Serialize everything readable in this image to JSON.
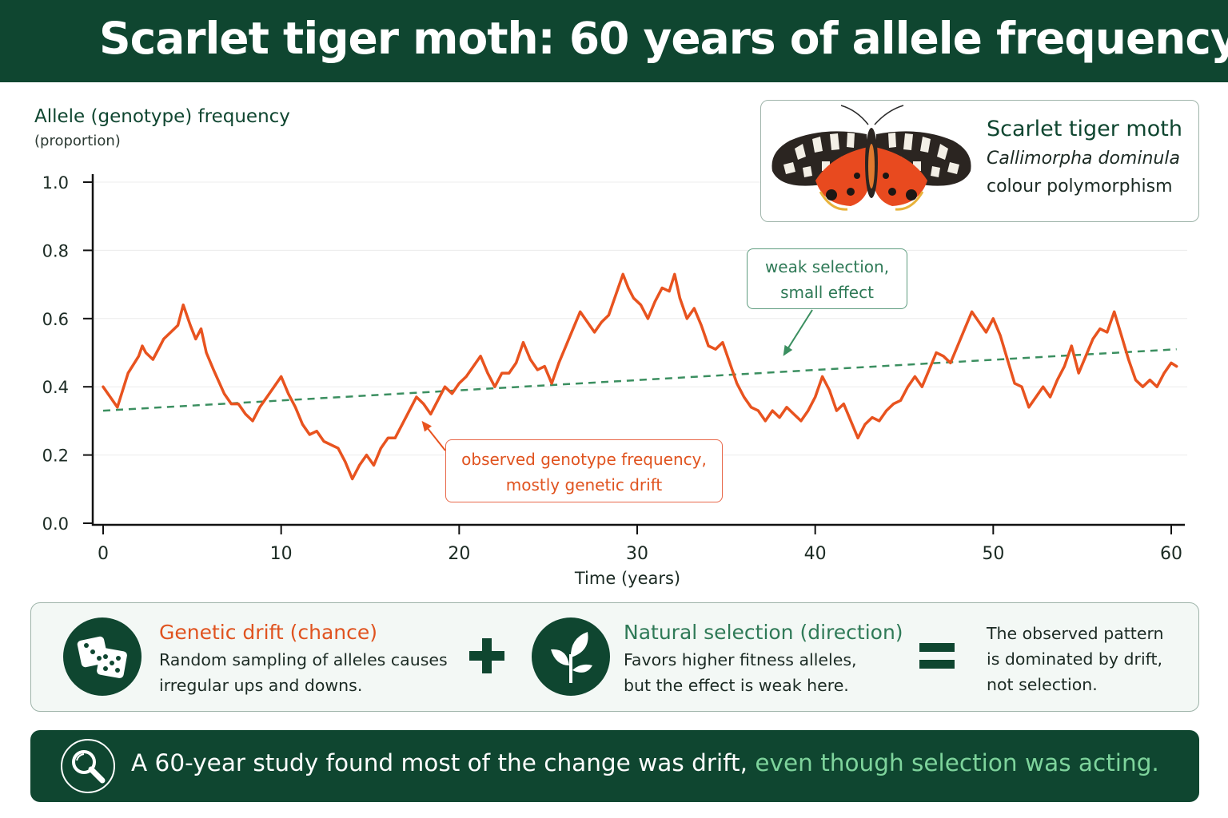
{
  "header": {
    "title": "Scarlet tiger moth: 60 years of allele frequency"
  },
  "chart_data": {
    "type": "line",
    "ylabel": "Allele (genotype) frequency",
    "yunit": "(proportion)",
    "xlabel": "Time (years)",
    "xlim": [
      0,
      60
    ],
    "ylim": [
      0,
      1
    ],
    "xticks": [
      0,
      10,
      20,
      30,
      40,
      50,
      60
    ],
    "yticks": [
      0.0,
      0.2,
      0.4,
      0.6,
      0.8,
      1.0
    ],
    "ytick_labels": [
      "0.0",
      "0.2",
      "0.4",
      "0.6",
      "0.8",
      "1.0"
    ],
    "grid": true,
    "series": [
      {
        "color": "#e8531f",
        "style": "solid",
        "x": [
          0,
          0.4,
          0.8,
          1.4,
          2.0,
          2.2,
          2.4,
          2.8,
          3.2,
          3.4,
          3.8,
          4.2,
          4.5,
          4.9,
          5.2,
          5.5,
          5.8,
          6.2,
          6.8,
          7.2,
          7.6,
          8.0,
          8.4,
          8.8,
          9.2,
          9.6,
          10.0,
          10.4,
          10.8,
          11.2,
          11.6,
          12.0,
          12.4,
          12.8,
          13.2,
          13.6,
          14.0,
          14.4,
          14.8,
          15.2,
          15.6,
          16.0,
          16.4,
          16.8,
          17.2,
          17.6,
          18.0,
          18.4,
          18.8,
          19.2,
          19.6,
          20.0,
          20.4,
          20.8,
          21.2,
          21.6,
          22.0,
          22.4,
          22.8,
          23.2,
          23.6,
          24.0,
          24.4,
          24.8,
          25.2,
          25.6,
          26.0,
          26.4,
          26.8,
          27.2,
          27.6,
          28.0,
          28.4,
          28.8,
          29.2,
          29.5,
          29.8,
          30.2,
          30.6,
          31.0,
          31.4,
          31.8,
          32.1,
          32.4,
          32.8,
          33.2,
          33.6,
          34.0,
          34.4,
          34.8,
          35.2,
          35.6,
          36.0,
          36.4,
          36.8,
          37.2,
          37.6,
          38.0,
          38.4,
          38.8,
          39.2,
          39.6,
          40.0,
          40.4,
          40.8,
          41.2,
          41.6,
          42.0,
          42.4,
          42.8,
          43.2,
          43.6,
          44.0,
          44.4,
          44.8,
          45.2,
          45.6,
          46.0,
          46.4,
          46.8,
          47.2,
          47.6,
          48.0,
          48.4,
          48.8,
          49.2,
          49.6,
          50.0,
          50.4,
          50.8,
          51.2,
          51.6,
          52.0,
          52.4,
          52.8,
          53.2,
          53.6,
          54.0,
          54.4,
          54.8,
          55.2,
          55.6,
          56.0,
          56.4,
          56.8,
          57.2,
          57.6,
          58.0,
          58.4,
          58.8,
          59.2,
          59.6,
          60.0,
          60.3
        ],
        "y": [
          0.4,
          0.37,
          0.34,
          0.44,
          0.49,
          0.52,
          0.5,
          0.48,
          0.52,
          0.54,
          0.56,
          0.58,
          0.64,
          0.58,
          0.54,
          0.57,
          0.5,
          0.45,
          0.38,
          0.35,
          0.35,
          0.32,
          0.3,
          0.34,
          0.37,
          0.4,
          0.43,
          0.38,
          0.34,
          0.29,
          0.26,
          0.27,
          0.24,
          0.23,
          0.22,
          0.18,
          0.13,
          0.17,
          0.2,
          0.17,
          0.22,
          0.25,
          0.25,
          0.29,
          0.33,
          0.37,
          0.35,
          0.32,
          0.36,
          0.4,
          0.38,
          0.41,
          0.43,
          0.46,
          0.49,
          0.44,
          0.4,
          0.44,
          0.44,
          0.47,
          0.53,
          0.48,
          0.45,
          0.46,
          0.41,
          0.47,
          0.52,
          0.57,
          0.62,
          0.59,
          0.56,
          0.59,
          0.61,
          0.67,
          0.73,
          0.69,
          0.66,
          0.64,
          0.6,
          0.65,
          0.69,
          0.68,
          0.73,
          0.66,
          0.6,
          0.63,
          0.58,
          0.52,
          0.51,
          0.53,
          0.47,
          0.41,
          0.37,
          0.34,
          0.33,
          0.3,
          0.33,
          0.31,
          0.34,
          0.32,
          0.3,
          0.33,
          0.37,
          0.43,
          0.39,
          0.33,
          0.35,
          0.3,
          0.25,
          0.29,
          0.31,
          0.3,
          0.33,
          0.35,
          0.36,
          0.4,
          0.43,
          0.4,
          0.45,
          0.5,
          0.49,
          0.47,
          0.52,
          0.57,
          0.62,
          0.59,
          0.56,
          0.6,
          0.55,
          0.48,
          0.41,
          0.4,
          0.34,
          0.37,
          0.4,
          0.37,
          0.42,
          0.46,
          0.52,
          0.44,
          0.49,
          0.54,
          0.57,
          0.56,
          0.62,
          0.55,
          0.48,
          0.42,
          0.4,
          0.42,
          0.4,
          0.44,
          0.47,
          0.46
        ]
      },
      {
        "color": "#3b8f60",
        "style": "dashed",
        "x": [
          0,
          60.3
        ],
        "y": [
          0.33,
          0.51
        ]
      }
    ],
    "annotations": [
      {
        "text_lines": [
          "weak selection,",
          "small effect"
        ],
        "color": "#2f7a57",
        "points_to": [
          38.2,
          0.49
        ]
      },
      {
        "text_lines": [
          "observed genotype frequency,",
          "mostly genetic drift"
        ],
        "color": "#e0531f",
        "points_to": [
          17.9,
          0.3
        ]
      }
    ]
  },
  "species_card": {
    "common_name": "Scarlet tiger moth",
    "scientific_name": "Callimorpha dominula",
    "trait": "colour polymorphism"
  },
  "legend": {
    "drift": {
      "title": "Genetic drift (chance)",
      "line1": "Random sampling of alleles causes",
      "line2": "irregular ups and downs.",
      "icon": "dice-icon"
    },
    "operator_plus": "plus-icon",
    "selection": {
      "title": "Natural selection (direction)",
      "line1": "Favors higher fitness alleles,",
      "line2": "but the effect is weak here.",
      "icon": "sprout-icon"
    },
    "operator_equals": "equals-icon",
    "result": {
      "line1": "The observed pattern",
      "line2": "is dominated by drift,",
      "line3": "not selection."
    }
  },
  "banner": {
    "icon": "magnifier-icon",
    "text_main": "A 60-year study found most of the change was drift, ",
    "text_emphasis": "even though selection was acting."
  },
  "colors": {
    "dark_green": "#0f4630",
    "drift_orange": "#e8531f",
    "selection_green": "#3b8f60",
    "emphasis_green": "#7ed49c"
  }
}
